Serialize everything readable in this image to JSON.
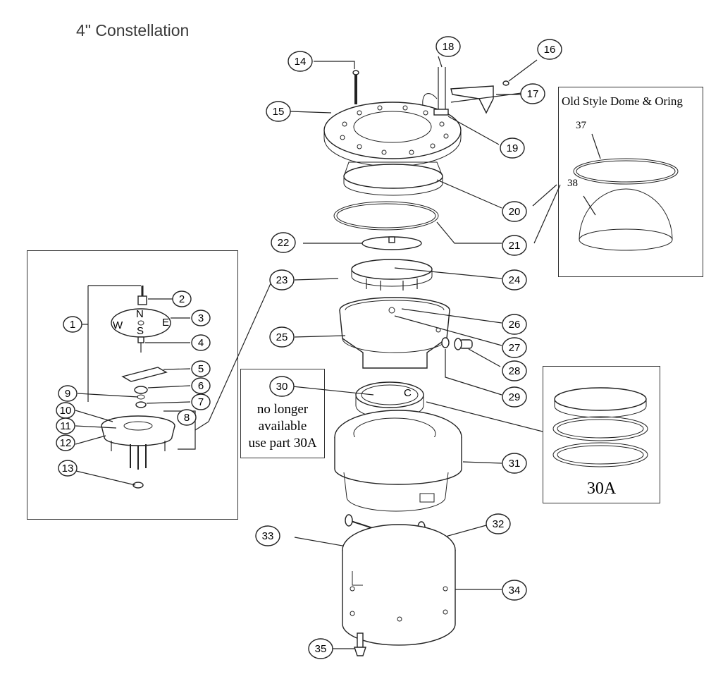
{
  "title": "4\" Constellation",
  "callouts": {
    "c1": "1",
    "c2": "2",
    "c3": "3",
    "c4": "4",
    "c5": "5",
    "c6": "6",
    "c7": "7",
    "c8": "8",
    "c9": "9",
    "c10": "10",
    "c11": "11",
    "c12": "12",
    "c13": "13",
    "c14": "14",
    "c15": "15",
    "c16": "16",
    "c17": "17",
    "c18": "18",
    "c19": "19",
    "c20": "20",
    "c21": "21",
    "c22": "22",
    "c23": "23",
    "c24": "24",
    "c25": "25",
    "c26": "26",
    "c27": "27",
    "c28": "28",
    "c29": "29",
    "c30": "30",
    "c31": "31",
    "c32": "32",
    "c33": "33",
    "c34": "34",
    "c35": "35"
  },
  "compass": {
    "n": "N",
    "s": "S",
    "e": "E",
    "w": "W"
  },
  "old_style_box": {
    "heading": "Old Style Dome & Oring",
    "label37": "37",
    "label38": "38"
  },
  "note_box": {
    "line1": "no longer",
    "line2": "available",
    "line3": "use part 30A"
  },
  "part30a_box": {
    "label": "30A"
  },
  "part30_mark": "C"
}
